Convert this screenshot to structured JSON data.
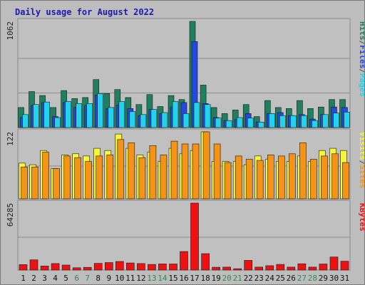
{
  "chart_data": {
    "type": "bar",
    "title": "Daily usage for August 2022",
    "days": [
      "1",
      "2",
      "3",
      "4",
      "5",
      "6",
      "7",
      "8",
      "9",
      "10",
      "11",
      "12",
      "13",
      "14",
      "15",
      "16",
      "17",
      "18",
      "19",
      "20",
      "21",
      "22",
      "23",
      "24",
      "25",
      "26",
      "27",
      "28",
      "29",
      "30",
      "31"
    ],
    "weekend_days": [
      "6",
      "7",
      "13",
      "14",
      "20",
      "21",
      "27",
      "28"
    ],
    "panels": [
      {
        "id": "requests",
        "ymax_label": "1062",
        "ymax": 1062,
        "right_label": [
          "Pages",
          "Files",
          "Hits"
        ],
        "series": [
          {
            "name": "Hits",
            "color": "#1f7f5f",
            "values": [
              200,
              360,
              320,
              200,
              370,
              290,
              300,
              480,
              340,
              380,
              300,
              230,
              330,
              210,
              320,
              280,
              1062,
              425,
              200,
              140,
              175,
              230,
              110,
              270,
              200,
              190,
              270,
              190,
              205,
              280,
              280
            ]
          },
          {
            "name": "Files",
            "color": "#2448e0",
            "values": [
              100,
              220,
              250,
              110,
              250,
              200,
              220,
              325,
              190,
              225,
              190,
              120,
              180,
              140,
              205,
              250,
              860,
              240,
              100,
              70,
              80,
              140,
              55,
              140,
              150,
              120,
              130,
              85,
              130,
              205,
              200
            ]
          },
          {
            "name": "Pages",
            "color": "#22d3ee",
            "values": [
              130,
              230,
              255,
              100,
              260,
              240,
              240,
              340,
              200,
              260,
              160,
              130,
              180,
              150,
              260,
              140,
              250,
              230,
              95,
              70,
              100,
              95,
              55,
              140,
              120,
              120,
              120,
              70,
              130,
              145,
              155
            ]
          }
        ]
      },
      {
        "id": "visits",
        "ymax_label": "122",
        "ymax": 122,
        "right_label": [
          "Sites",
          "Visits"
        ],
        "series": [
          {
            "name": "Visits",
            "color": "#f6f63a",
            "values": [
              65,
              62,
              88,
              55,
              80,
              82,
              78,
              92,
              88,
              118,
              92,
              80,
              85,
              68,
              92,
              82,
              88,
              122,
              68,
              68,
              68,
              62,
              78,
              72,
              68,
              68,
              78,
              68,
              88,
              92,
              88
            ]
          },
          {
            "name": "Sites",
            "color": "#f59317",
            "values": [
              58,
              58,
              85,
              55,
              78,
              75,
              68,
              78,
              80,
              108,
              102,
              75,
              97,
              80,
              105,
              100,
              100,
              122,
              100,
              66,
              78,
              72,
              70,
              80,
              78,
              82,
              102,
              72,
              78,
              82,
              66
            ]
          }
        ]
      },
      {
        "id": "kbytes",
        "ymax_label": "64285",
        "ymax": 64285,
        "right_label": [
          "KBytes"
        ],
        "series": [
          {
            "name": "KBytes",
            "color": "#ee1111",
            "values": [
              5200,
              9800,
              3800,
              6200,
              4800,
              2200,
              2600,
              6400,
              7200,
              8200,
              6800,
              6200,
              5400,
              5900,
              5800,
              17800,
              64285,
              15700,
              2700,
              2800,
              1300,
              9300,
              2800,
              4200,
              5400,
              2800,
              6000,
              2800,
              5800,
              12500,
              8500
            ]
          }
        ]
      }
    ]
  }
}
